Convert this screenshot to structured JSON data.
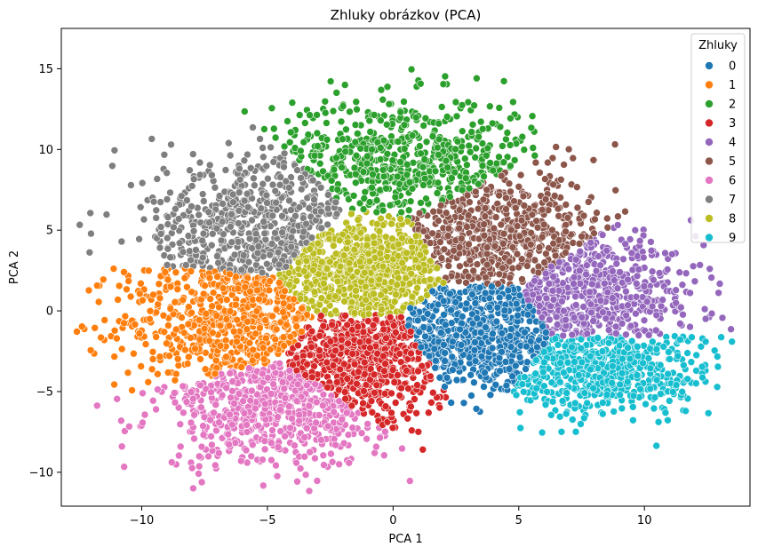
{
  "chart_data": {
    "type": "scatter",
    "title": "Zhluky obrázkov (PCA)",
    "xlabel": "PCA 1",
    "ylabel": "PCA 2",
    "xlim": [
      -13.2,
      14.2
    ],
    "ylim": [
      -12.1,
      17.5
    ],
    "xticks": [
      -10,
      -5,
      0,
      5,
      10
    ],
    "yticks": [
      -10,
      -5,
      0,
      5,
      10,
      15
    ],
    "grid": false,
    "legend": {
      "title": "Zhluky",
      "placement": "top-right"
    },
    "series": [
      {
        "name": "0",
        "color": "#1f77b4",
        "center": [
          3.3,
          -1.4
        ],
        "spread": [
          1.9,
          1.7
        ],
        "n": 620
      },
      {
        "name": "1",
        "color": "#ff7f0e",
        "center": [
          -6.5,
          -0.7
        ],
        "spread": [
          2.2,
          2.0
        ],
        "n": 620
      },
      {
        "name": "2",
        "color": "#2ca02c",
        "center": [
          0.5,
          9.5
        ],
        "spread": [
          2.6,
          1.9
        ],
        "n": 620
      },
      {
        "name": "3",
        "color": "#d62728",
        "center": [
          -1.2,
          -3.0
        ],
        "spread": [
          1.7,
          1.7
        ],
        "n": 620
      },
      {
        "name": "4",
        "color": "#9467bd",
        "center": [
          8.2,
          0.8
        ],
        "spread": [
          2.0,
          1.7
        ],
        "n": 560
      },
      {
        "name": "5",
        "color": "#8c564b",
        "center": [
          4.2,
          4.6
        ],
        "spread": [
          2.2,
          1.8
        ],
        "n": 580
      },
      {
        "name": "6",
        "color": "#e377c2",
        "center": [
          -4.7,
          -6.3
        ],
        "spread": [
          2.3,
          1.7
        ],
        "n": 620
      },
      {
        "name": "7",
        "color": "#7f7f7f",
        "center": [
          -5.6,
          5.3
        ],
        "spread": [
          2.2,
          2.3
        ],
        "n": 620
      },
      {
        "name": "8",
        "color": "#bcbd22",
        "center": [
          -1.3,
          2.5
        ],
        "spread": [
          1.7,
          1.4
        ],
        "n": 620
      },
      {
        "name": "9",
        "color": "#17becf",
        "center": [
          8.3,
          -3.9
        ],
        "spread": [
          2.2,
          1.3
        ],
        "n": 580
      }
    ]
  }
}
